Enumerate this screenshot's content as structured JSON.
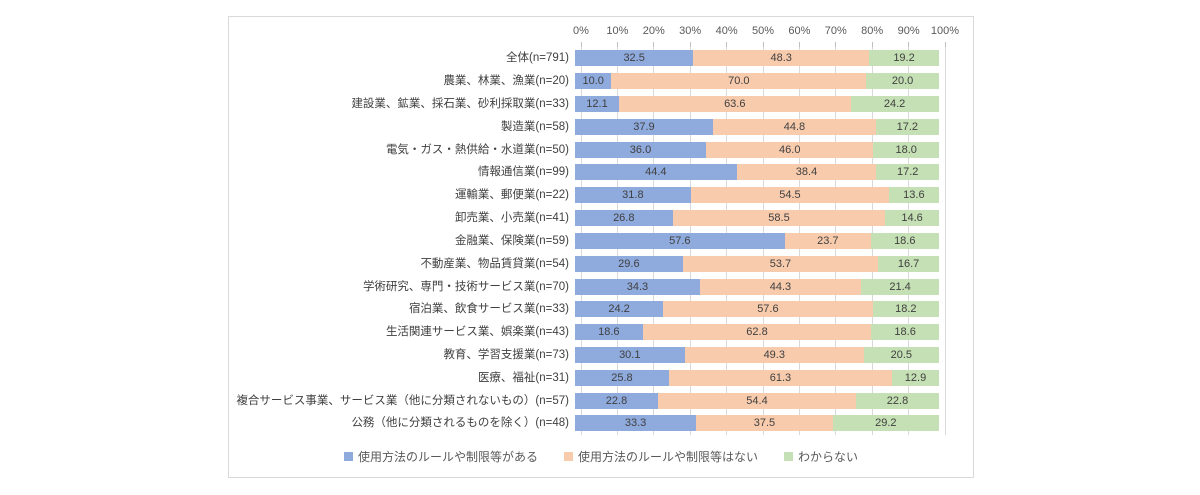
{
  "chart_data": {
    "type": "bar",
    "orientation": "horizontal",
    "stacked": true,
    "title": "",
    "x_axis": {
      "min": 0,
      "max": 100,
      "tick_interval": 10,
      "ticks": [
        "0%",
        "10%",
        "20%",
        "30%",
        "40%",
        "50%",
        "60%",
        "70%",
        "80%",
        "90%",
        "100%"
      ]
    },
    "grid": true,
    "legend_position": "bottom",
    "value_label_decimals": 1,
    "categories": [
      "全体(n=791)",
      "農業、林業、漁業(n=20)",
      "建設業、鉱業、採石業、砂利採取業(n=33)",
      "製造業(n=58)",
      "電気・ガス・熱供給・水道業(n=50)",
      "情報通信業(n=99)",
      "運輸業、郵便業(n=22)",
      "卸売業、小売業(n=41)",
      "金融業、保険業(n=59)",
      "不動産業、物品賃貸業(n=54)",
      "学術研究、専門・技術サービス業(n=70)",
      "宿泊業、飲食サービス業(n=33)",
      "生活関連サービス業、娯楽業(n=43)",
      "教育、学習支援業(n=73)",
      "医療、福祉(n=31)",
      "複合サービス事業、サービス業（他に分類されないもの）(n=57)",
      "公務（他に分類されるものを除く）(n=48)"
    ],
    "series": [
      {
        "name": "使用方法のルールや制限等がある",
        "color": "#8faadc",
        "values": [
          32.5,
          10.0,
          12.1,
          37.9,
          36.0,
          44.4,
          31.8,
          26.8,
          57.6,
          29.6,
          34.3,
          24.2,
          18.6,
          30.1,
          25.8,
          22.8,
          33.3
        ]
      },
      {
        "name": "使用方法のルールや制限等はない",
        "color": "#f8cbad",
        "values": [
          48.3,
          70.0,
          63.6,
          44.8,
          46.0,
          38.4,
          54.5,
          58.5,
          23.7,
          53.7,
          44.3,
          57.6,
          62.8,
          49.3,
          61.3,
          54.4,
          37.5
        ]
      },
      {
        "name": "わからない",
        "color": "#c5e0b4",
        "values": [
          19.2,
          20.0,
          24.2,
          17.2,
          18.0,
          17.2,
          13.6,
          14.6,
          18.6,
          16.7,
          21.4,
          18.2,
          18.6,
          20.5,
          12.9,
          22.8,
          29.2
        ]
      }
    ]
  },
  "style": {
    "border_color": "#d9d9d9",
    "grid_color": "#d9d9d9",
    "tick_color": "#bfbfbf",
    "axis_label_color": "#595959",
    "category_label_color": "#404040",
    "value_label_color": "#404040",
    "legend_text_color": "#595959",
    "background": "#ffffff"
  }
}
